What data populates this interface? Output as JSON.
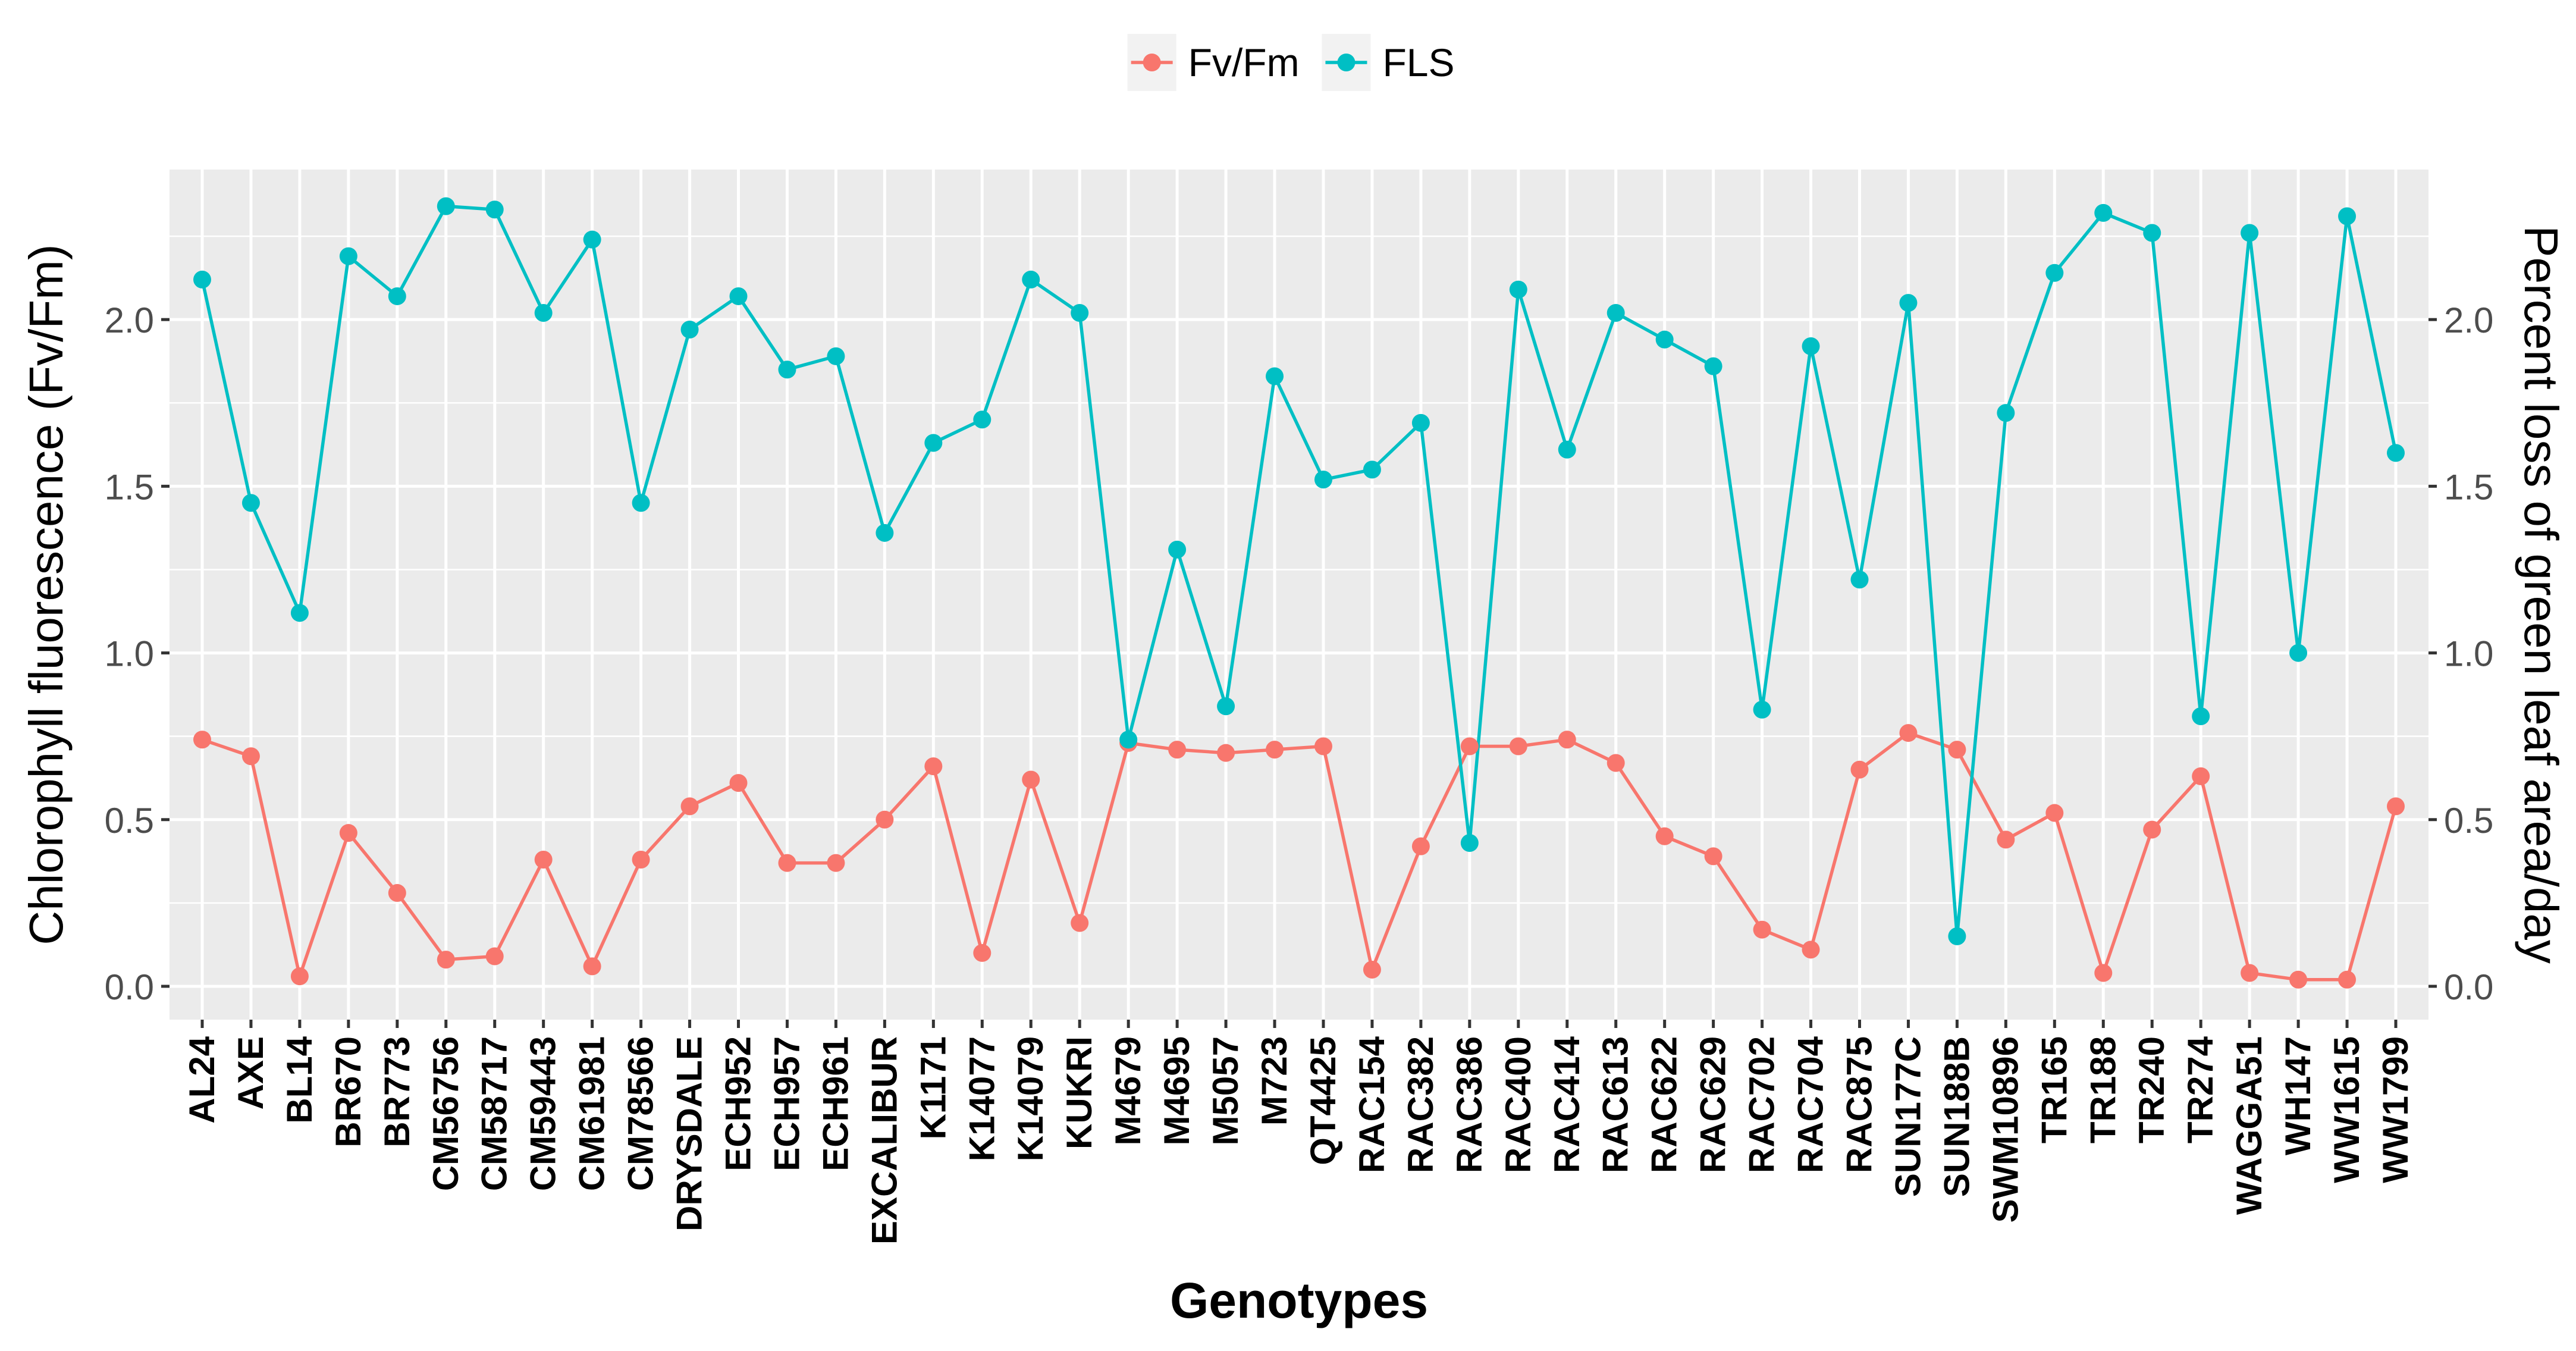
{
  "chart_data": {
    "type": "line",
    "title": "",
    "xlabel": "Genotypes",
    "ylabel": "Chlorophyll fluorescence (Fv/Fm)",
    "ylabel_right": "Percent loss of green leaf area/day",
    "ylim": [
      -0.1,
      2.45
    ],
    "yticks": [
      0.0,
      0.5,
      1.0,
      1.5,
      2.0
    ],
    "ytick_labels": [
      "0.0",
      "0.5",
      "1.0",
      "1.5",
      "2.0"
    ],
    "legend_position": "top",
    "grid": true,
    "categories": [
      "AL24",
      "AXE",
      "BL14",
      "BR670",
      "BR773",
      "CM56756",
      "CM58717",
      "CM59443",
      "CM61981",
      "CM78566",
      "DRYSDALE",
      "ECH952",
      "ECH957",
      "ECH961",
      "EXCALIBUR",
      "K1171",
      "K14077",
      "K14079",
      "KUKRI",
      "M4679",
      "M4695",
      "M5057",
      "M723",
      "QT4425",
      "RAC154",
      "RAC382",
      "RAC386",
      "RAC400",
      "RAC414",
      "RAC613",
      "RAC622",
      "RAC629",
      "RAC702",
      "RAC704",
      "RAC875",
      "SUN177C",
      "SUN188B",
      "SWM10896",
      "TR165",
      "TR188",
      "TR240",
      "TR274",
      "WAGGA51",
      "WH147",
      "WW1615",
      "WW1799"
    ],
    "series": [
      {
        "name": "Fv/Fm",
        "color": "#F8766D",
        "values": [
          0.74,
          0.69,
          0.03,
          0.46,
          0.28,
          0.08,
          0.09,
          0.38,
          0.06,
          0.38,
          0.54,
          0.61,
          0.37,
          0.37,
          0.5,
          0.66,
          0.1,
          0.62,
          0.19,
          0.73,
          0.71,
          0.7,
          0.71,
          0.72,
          0.05,
          0.42,
          0.72,
          0.72,
          0.74,
          0.67,
          0.45,
          0.39,
          0.17,
          0.11,
          0.65,
          0.76,
          0.71,
          0.44,
          0.52,
          0.04,
          0.47,
          0.63,
          0.04,
          0.02,
          0.02,
          0.54
        ]
      },
      {
        "name": "FLS",
        "color": "#00BFC4",
        "values": [
          2.12,
          1.45,
          1.12,
          2.19,
          2.07,
          2.34,
          2.33,
          2.02,
          2.24,
          1.45,
          1.97,
          2.07,
          1.85,
          1.89,
          1.36,
          1.63,
          1.7,
          2.12,
          2.02,
          0.74,
          1.31,
          0.84,
          1.83,
          1.52,
          1.55,
          1.69,
          0.43,
          2.09,
          1.61,
          2.02,
          1.94,
          1.86,
          0.83,
          1.92,
          1.22,
          2.05,
          0.15,
          1.72,
          2.14,
          2.32,
          2.26,
          0.81,
          2.26,
          1.0,
          2.31,
          1.6
        ]
      }
    ]
  }
}
